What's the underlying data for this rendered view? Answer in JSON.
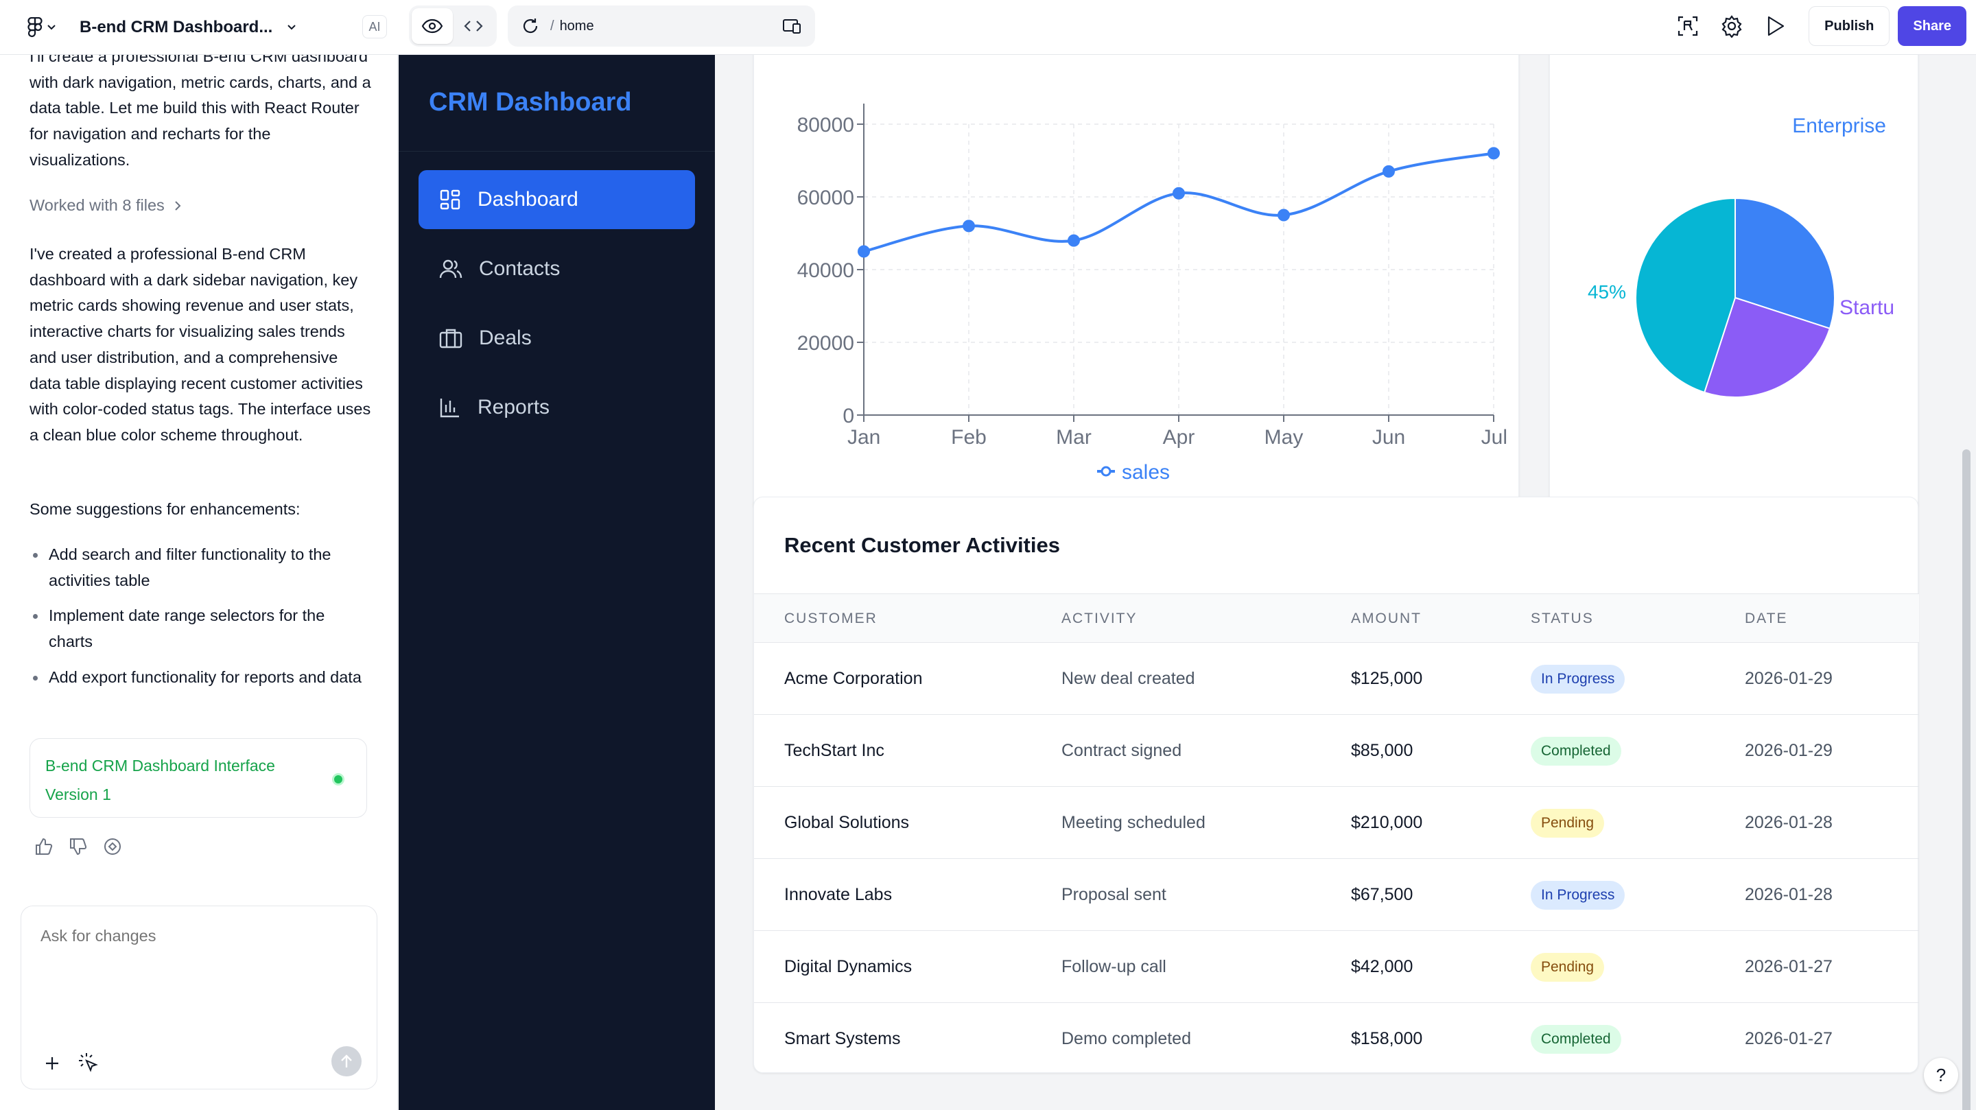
{
  "topbar": {
    "project_title": "B-end CRM Dashboard...",
    "ai_label": "AI",
    "url_path": "home",
    "publish_label": "Publish",
    "share_label": "Share"
  },
  "chat": {
    "intro": "I'll create a professional B-end CRM dashboard with dark navigation, metric cards, charts, and a data table. Let me build this with React Router for navigation and recharts for the visualizations.",
    "worked_with": "Worked with 8 files",
    "summary": "I've created a professional B-end CRM dashboard with a dark sidebar navigation, key metric cards showing revenue and user stats, interactive charts for visualizing sales trends and user distribution, and a comprehensive data table displaying recent customer activities with color-coded status tags. The interface uses a clean blue color scheme throughout.",
    "suggestions_heading": "Some suggestions for enhancements:",
    "suggestions": [
      "Add search and filter functionality to the activities table",
      "Implement date range selectors for the charts",
      "Add export functionality for reports and data"
    ],
    "version_card": {
      "title": "B-end CRM Dashboard Interface",
      "version": "Version 1"
    },
    "composer_placeholder": "Ask for changes"
  },
  "app": {
    "brand": "CRM Dashboard",
    "nav": [
      {
        "label": "Dashboard",
        "icon": "grid-icon",
        "active": true
      },
      {
        "label": "Contacts",
        "icon": "users-icon",
        "active": false
      },
      {
        "label": "Deals",
        "icon": "briefcase-icon",
        "active": false
      },
      {
        "label": "Reports",
        "icon": "bar-chart-icon",
        "active": false
      }
    ]
  },
  "chart_data": [
    {
      "type": "line",
      "categories": [
        "Jan",
        "Feb",
        "Mar",
        "Apr",
        "May",
        "Jun",
        "Jul"
      ],
      "series": [
        {
          "name": "sales",
          "values": [
            45000,
            52000,
            48000,
            61000,
            55000,
            67000,
            72000
          ],
          "color": "#3b82f6"
        }
      ],
      "yticks": [
        0,
        20000,
        40000,
        60000,
        80000
      ],
      "ylim": [
        0,
        80000
      ],
      "grid": true,
      "legend": "bottom"
    },
    {
      "type": "pie",
      "slices": [
        {
          "name": "Enterprise",
          "value": 30,
          "color": "#3b82f6"
        },
        {
          "name": "Startu",
          "value": 25,
          "color": "#8b5cf6"
        },
        {
          "name": "",
          "value": 45,
          "color": "#06b6d4"
        }
      ],
      "visible_labels": {
        "enterprise": "Enterprise",
        "startup": "Startu",
        "percent": "45%"
      }
    }
  ],
  "table": {
    "title": "Recent Customer Activities",
    "columns": [
      "CUSTOMER",
      "ACTIVITY",
      "AMOUNT",
      "STATUS",
      "DATE"
    ],
    "rows": [
      {
        "customer": "Acme Corporation",
        "activity": "New deal created",
        "amount": "$125,000",
        "status": "In Progress",
        "date": "2026-01-29"
      },
      {
        "customer": "TechStart Inc",
        "activity": "Contract signed",
        "amount": "$85,000",
        "status": "Completed",
        "date": "2026-01-29"
      },
      {
        "customer": "Global Solutions",
        "activity": "Meeting scheduled",
        "amount": "$210,000",
        "status": "Pending",
        "date": "2026-01-28"
      },
      {
        "customer": "Innovate Labs",
        "activity": "Proposal sent",
        "amount": "$67,500",
        "status": "In Progress",
        "date": "2026-01-28"
      },
      {
        "customer": "Digital Dynamics",
        "activity": "Follow-up call",
        "amount": "$42,000",
        "status": "Pending",
        "date": "2026-01-27"
      },
      {
        "customer": "Smart Systems",
        "activity": "Demo completed",
        "amount": "$158,000",
        "status": "Completed",
        "date": "2026-01-27"
      }
    ]
  },
  "help_label": "?"
}
